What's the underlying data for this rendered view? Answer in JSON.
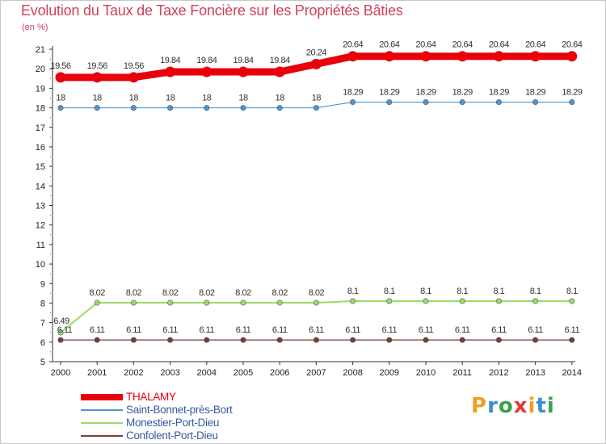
{
  "title": "Evolution du Taux de Taxe Foncière sur les Propriétés Bâties",
  "unit_label": "(en %)",
  "chart_data": {
    "type": "line",
    "title": "Evolution du Taux de Taxe Foncière sur les Propriétés Bâties",
    "ylabel": "(en %)",
    "xlabel": "",
    "ylim": [
      5,
      21
    ],
    "yticks": [
      5,
      6,
      7,
      8,
      9,
      10,
      11,
      12,
      13,
      14,
      15,
      16,
      17,
      18,
      19,
      20,
      21
    ],
    "grid": false,
    "legend_position": "bottom-left",
    "x": [
      "2000",
      "2001",
      "2002",
      "2003",
      "2004",
      "2005",
      "2006",
      "2007",
      "2008",
      "2009",
      "2010",
      "2011",
      "2012",
      "2013",
      "2014"
    ],
    "series": [
      {
        "name": "THALAMY",
        "color": "#e8000b",
        "values": [
          19.56,
          19.56,
          19.56,
          19.84,
          19.84,
          19.84,
          19.84,
          20.24,
          20.64,
          20.64,
          20.64,
          20.64,
          20.64,
          20.64,
          20.64
        ],
        "labels": [
          "19.56",
          "19.56",
          "19.56",
          "19.84",
          "19.84",
          "19.84",
          "19.84",
          "20.24",
          "20.64",
          "20.64",
          "20.64",
          "20.64",
          "20.64",
          "20.64",
          "20.64"
        ]
      },
      {
        "name": "Saint-Bonnet-près-Bort",
        "color": "#4f95d0",
        "values": [
          18,
          18,
          18,
          18,
          18,
          18,
          18,
          18,
          18.29,
          18.29,
          18.29,
          18.29,
          18.29,
          18.29,
          18.29
        ],
        "labels": [
          "18",
          "18",
          "18",
          "18",
          "18",
          "18",
          "18",
          "18",
          "18.29",
          "18.29",
          "18.29",
          "18.29",
          "18.29",
          "18.29",
          "18.29"
        ]
      },
      {
        "name": "Monestier-Port-Dieu",
        "color": "#99dd66",
        "values": [
          6.49,
          8.02,
          8.02,
          8.02,
          8.02,
          8.02,
          8.02,
          8.02,
          8.1,
          8.1,
          8.1,
          8.1,
          8.1,
          8.1,
          8.1
        ],
        "labels": [
          "6.49",
          "8.02",
          "8.02",
          "8.02",
          "8.02",
          "8.02",
          "8.02",
          "8.02",
          "8.1",
          "8.1",
          "8.1",
          "8.1",
          "8.1",
          "8.1",
          "8.1"
        ]
      },
      {
        "name": "Confolent-Port-Dieu",
        "color": "#7a3a3a",
        "values": [
          6.11,
          6.11,
          6.11,
          6.11,
          6.11,
          6.11,
          6.11,
          6.11,
          6.11,
          6.11,
          6.11,
          6.11,
          6.11,
          6.11,
          6.11
        ],
        "labels": [
          "6.11",
          "6.11",
          "6.11",
          "6.11",
          "6.11",
          "6.11",
          "6.11",
          "6.11",
          "6.11",
          "6.11",
          "6.11",
          "6.11",
          "6.11",
          "6.11",
          "6.11"
        ]
      }
    ]
  },
  "logo": {
    "letters": [
      "P",
      "r",
      "o",
      "x",
      "i",
      "t",
      "i"
    ],
    "colors": [
      "#f0a020",
      "#3a8fd0",
      "#3aa04a",
      "#e03a3a",
      "#f0a020",
      "#3a8fd0",
      "#3aa04a"
    ]
  }
}
